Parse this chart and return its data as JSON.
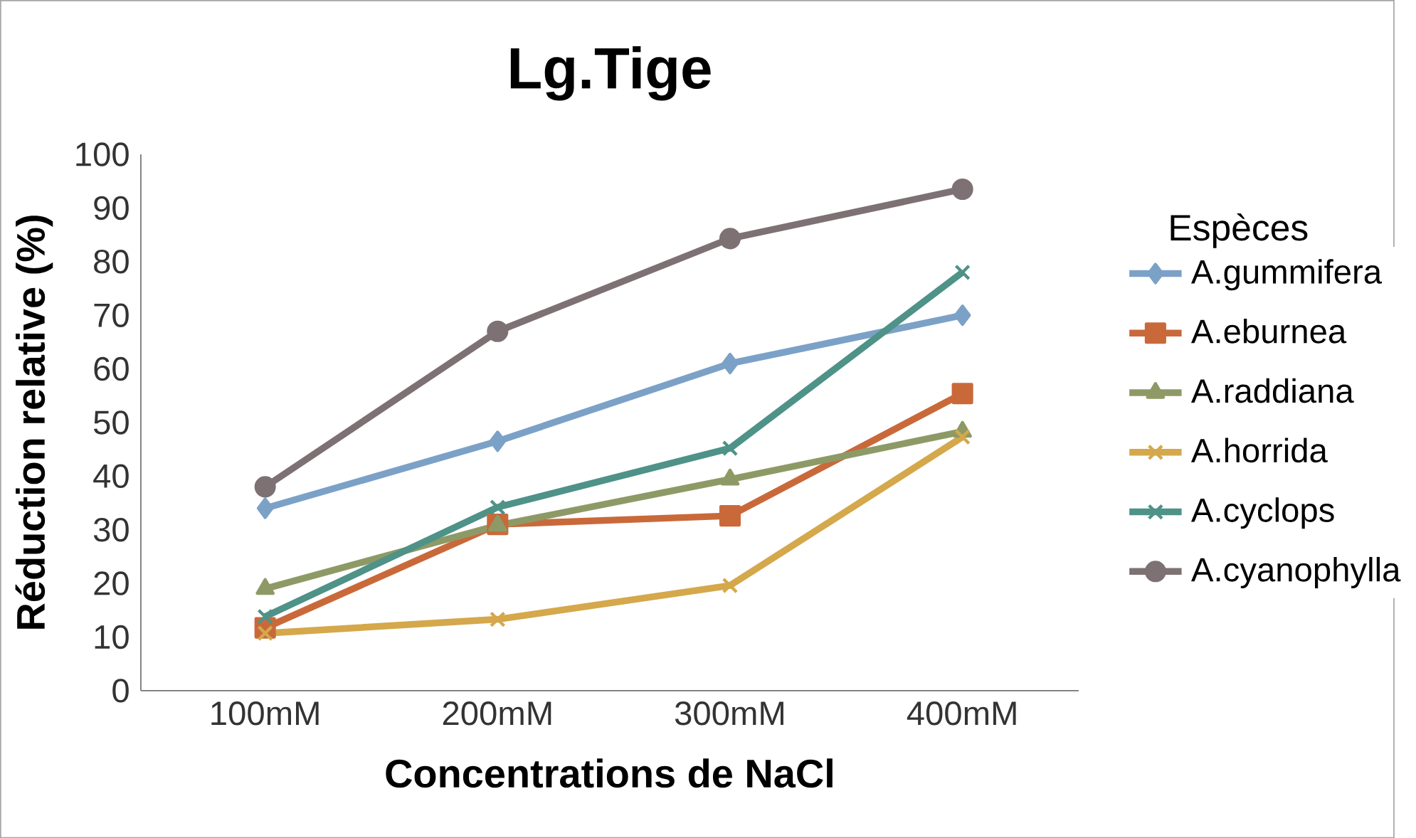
{
  "chart_data": {
    "type": "line",
    "title": "Lg.Tige",
    "xlabel": "Concentrations de NaCl",
    "ylabel": "Réduction relative (%)",
    "legend_title": "Espèces",
    "categories": [
      "100mM",
      "200mM",
      "300mM",
      "400mM"
    ],
    "ylim": [
      0,
      100
    ],
    "yticks": [
      0,
      10,
      20,
      30,
      40,
      50,
      60,
      70,
      80,
      90,
      100
    ],
    "legend": "right",
    "grid": false,
    "series": [
      {
        "name": "A.gummifera",
        "color": "#7ba1c7",
        "marker": "diamond",
        "values": [
          34,
          46.5,
          61,
          70
        ]
      },
      {
        "name": "A.eburnea",
        "color": "#c9693a",
        "marker": "square",
        "values": [
          11.7,
          31,
          32.6,
          55.4
        ]
      },
      {
        "name": "A.raddiana",
        "color": "#8e9a66",
        "marker": "triangle",
        "values": [
          19,
          30.8,
          39.4,
          48.3
        ]
      },
      {
        "name": "A.horrida",
        "color": "#d4a84b",
        "marker": "cross",
        "values": [
          10.7,
          13.3,
          19.6,
          47.3
        ]
      },
      {
        "name": "A.cyclops",
        "color": "#4e9288",
        "marker": "cross",
        "values": [
          13.8,
          34.2,
          45.2,
          78
        ]
      },
      {
        "name": "A.cyanophylla",
        "color": "#7d7174",
        "marker": "circle",
        "values": [
          38,
          67,
          84.3,
          93.5
        ]
      }
    ]
  }
}
